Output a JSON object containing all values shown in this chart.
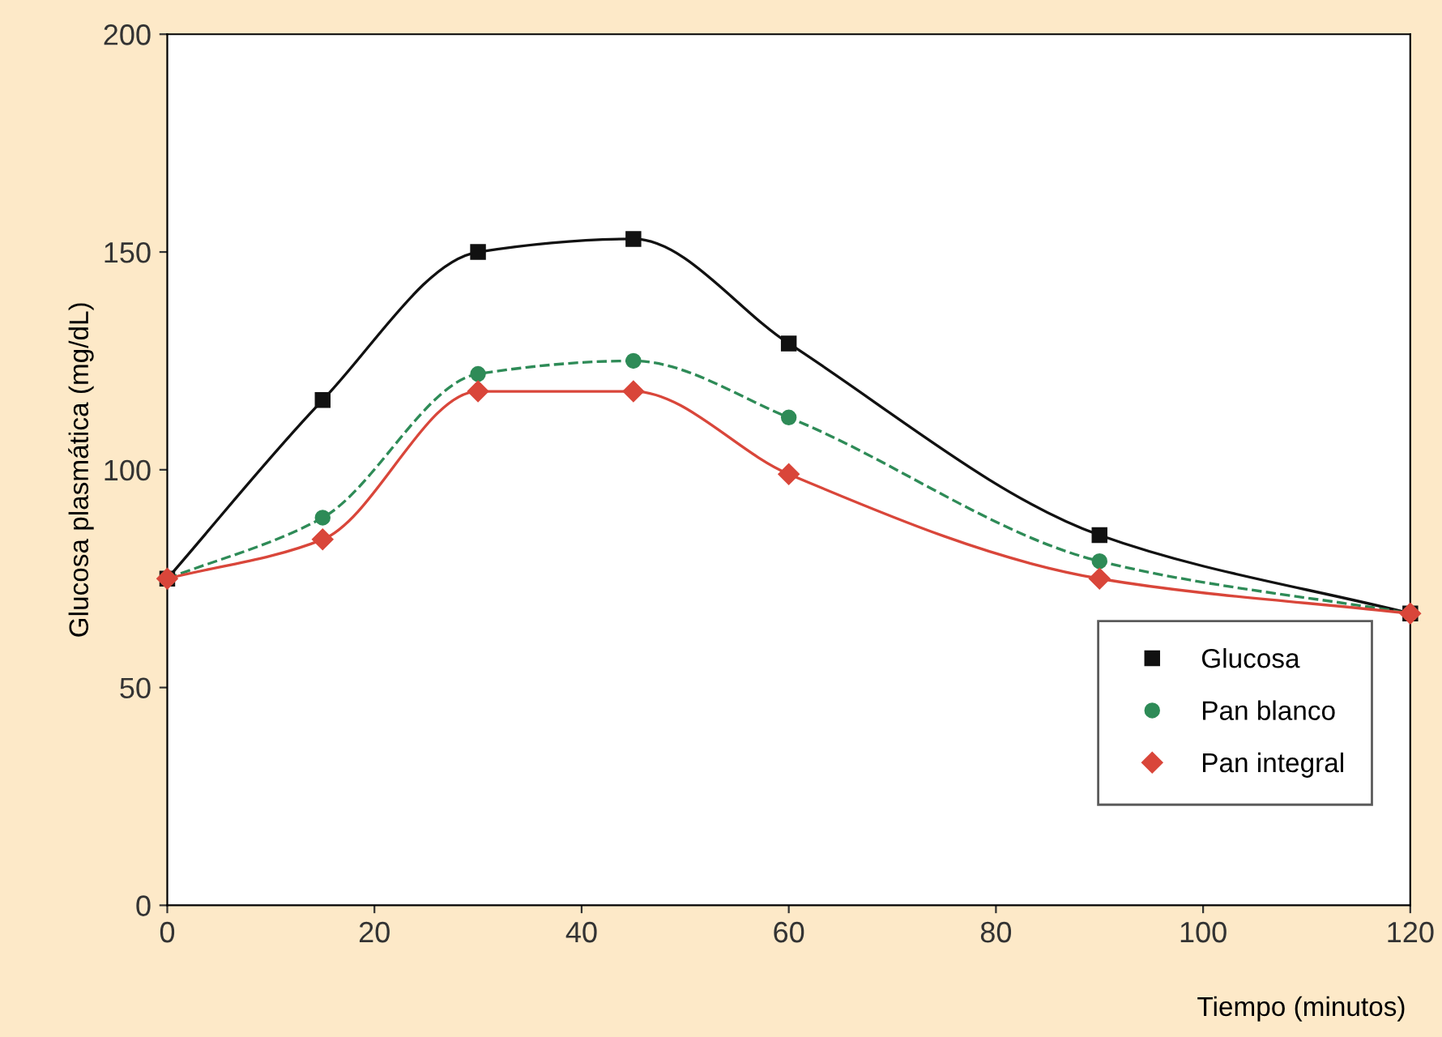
{
  "chart_data": {
    "type": "line",
    "xlabel": "Tiempo (minutos)",
    "ylabel": "Glucosa plasmática (mg/dL)",
    "x": [
      0,
      15,
      30,
      45,
      60,
      90,
      120
    ],
    "series": [
      {
        "name": "Glucosa",
        "color": "#111111",
        "marker": "square",
        "line_style": "solid",
        "values": [
          75,
          116,
          150,
          153,
          129,
          85,
          67
        ]
      },
      {
        "name": "Pan blanco",
        "color": "#2e8b57",
        "marker": "circle",
        "line_style": "dashed",
        "values": [
          75,
          89,
          122,
          125,
          112,
          79,
          67
        ]
      },
      {
        "name": "Pan integral",
        "color": "#d9463a",
        "marker": "diamond",
        "line_style": "solid",
        "values": [
          75,
          84,
          118,
          118,
          99,
          75,
          67
        ]
      }
    ],
    "xlim": [
      0,
      120
    ],
    "xticks": [
      0,
      20,
      40,
      60,
      80,
      100,
      120
    ],
    "ylim": [
      0,
      200
    ],
    "yticks": [
      0,
      50,
      100,
      150,
      200
    ],
    "grid": false,
    "legend": "bottom right"
  }
}
